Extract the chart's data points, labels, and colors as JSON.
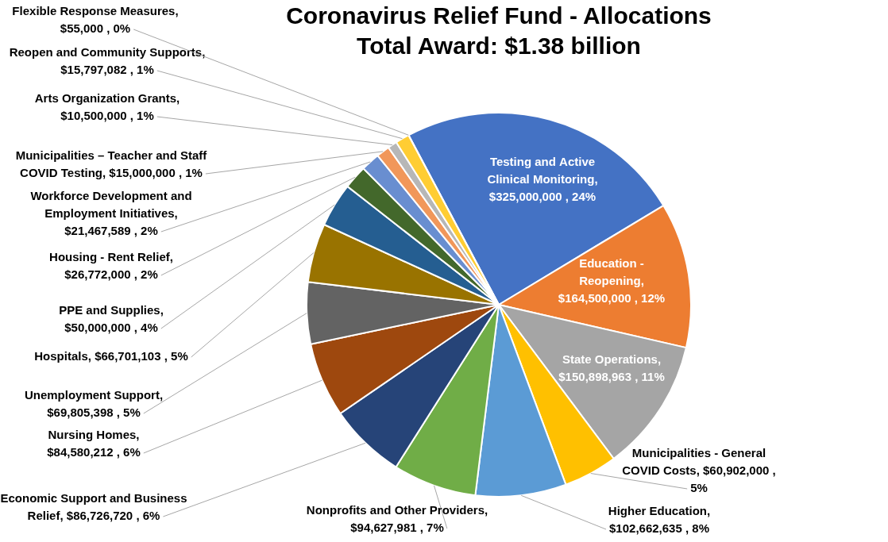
{
  "chart_data": {
    "type": "pie",
    "title": "Coronavirus Relief Fund - Allocations",
    "subtitle": "Total Award: $1.38 billion",
    "categories": [
      "Testing and Active Clinical Monitoring",
      "Education - Reopening",
      "State Operations",
      "Municipalities - General COVID Costs",
      "Higher Education",
      "Nonprofits and Other Providers",
      "Economic Support and Business Relief",
      "Nursing Homes",
      "Unemployment Support",
      "Hospitals",
      "PPE and Supplies",
      "Housing - Rent Relief",
      "Workforce Development and Employment Initiatives",
      "Municipalities – Teacher and Staff COVID Testing",
      "Arts Organization Grants",
      "Reopen and Community Supports",
      "Flexible Response Measures"
    ],
    "values": [
      325000000,
      164500000,
      150898963,
      60902000,
      102662635,
      94627981,
      86726720,
      84580212,
      69805398,
      66701103,
      50000000,
      26772000,
      21467589,
      15000000,
      10500000,
      15797082,
      55000
    ],
    "value_labels": [
      ", $325,000,000 , 24%",
      ", $164,500,000 , 12%",
      ", $150,898,963 , 11%",
      ", $60,902,000 , 5%",
      ", $102,662,635 , 8%",
      ", $94,627,981 , 7%",
      ", $86,726,720 , 6%",
      ", $84,580,212 , 6%",
      ", $69,805,398 , 5%",
      ", $66,701,103 , 5%",
      ", $50,000,000 , 4%",
      ", $26,772,000 , 2%",
      ", $21,467,589 , 2%",
      ", $15,000,000 , 1%",
      ", $10,500,000 , 1%",
      ", $15,797,082 , 1%",
      ", $55,000 , 0%"
    ],
    "colors": [
      "#4472c4",
      "#ed7d31",
      "#a5a5a5",
      "#ffc000",
      "#5b9bd5",
      "#70ad47",
      "#264478",
      "#9e480e",
      "#636363",
      "#997300",
      "#255e91",
      "#43682b",
      "#698ed0",
      "#f1975a",
      "#b7b7b7",
      "#ffcd33",
      "#7f9fd6"
    ]
  }
}
